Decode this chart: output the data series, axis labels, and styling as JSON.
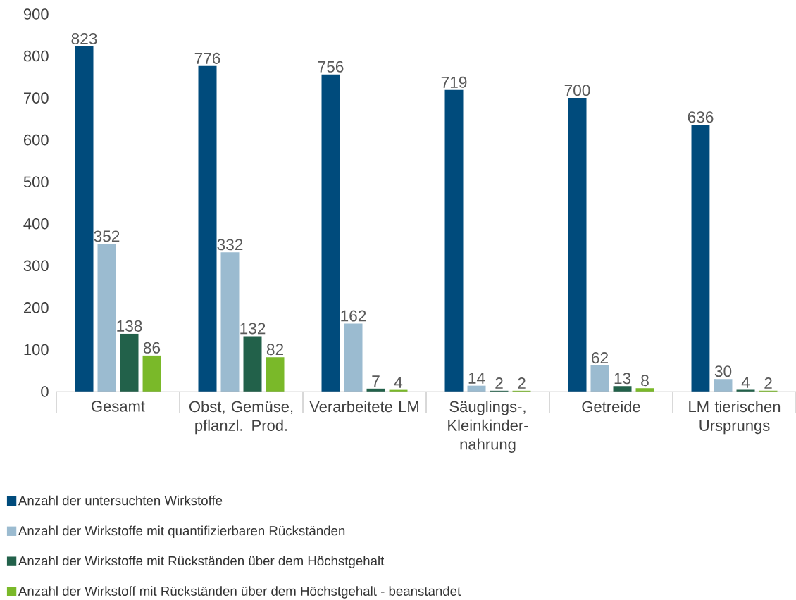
{
  "chart_data": {
    "type": "bar",
    "categories": [
      "Gesamt",
      "Obst, Gemüse, pflanzl. Prod.",
      "Verarbeitete LM",
      "Säuglings-, Kleinkinder-nahrung",
      "Getreide",
      "LM tierischen Ursprungs"
    ],
    "series": [
      {
        "name": "Anzahl der untersuchten Wirkstoffe",
        "color": "#004b7c",
        "values": [
          823,
          776,
          756,
          719,
          700,
          636
        ]
      },
      {
        "name": "Anzahl der Wirkstoffe mit quantifizierbaren Rückständen",
        "color": "#9bbbd0",
        "values": [
          352,
          332,
          162,
          14,
          62,
          30
        ]
      },
      {
        "name": "Anzahl der Wirkstoffe mit Rückständen über dem Höchstgehalt",
        "color": "#22614a",
        "values": [
          138,
          132,
          7,
          2,
          13,
          4
        ]
      },
      {
        "name": "Anzahl der Wirkstoff mit Rückständen über dem Höchstgehalt - beanstandet",
        "color": "#7ab929",
        "values": [
          86,
          82,
          4,
          2,
          8,
          2
        ]
      }
    ],
    "ylim": [
      0,
      900
    ],
    "yticks": [
      0,
      100,
      200,
      300,
      400,
      500,
      600,
      700,
      800,
      900
    ],
    "data_labels": true,
    "legend": "bottom",
    "grid": false
  }
}
